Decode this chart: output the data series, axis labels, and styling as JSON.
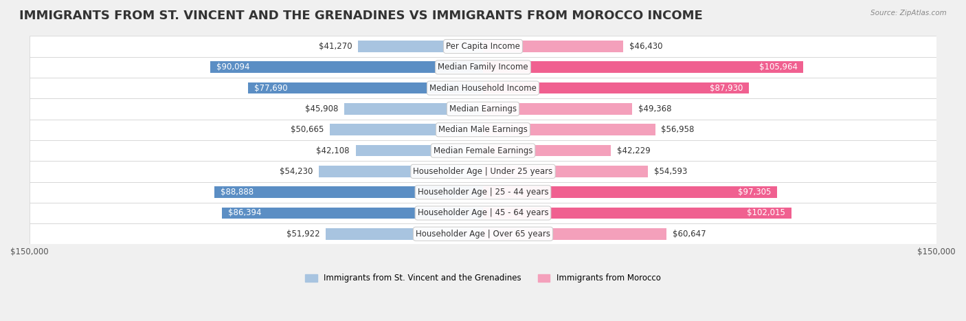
{
  "title": "IMMIGRANTS FROM ST. VINCENT AND THE GRENADINES VS IMMIGRANTS FROM MOROCCO INCOME",
  "source": "Source: ZipAtlas.com",
  "categories": [
    "Per Capita Income",
    "Median Family Income",
    "Median Household Income",
    "Median Earnings",
    "Median Male Earnings",
    "Median Female Earnings",
    "Householder Age | Under 25 years",
    "Householder Age | 25 - 44 years",
    "Householder Age | 45 - 64 years",
    "Householder Age | Over 65 years"
  ],
  "left_values": [
    41270,
    90094,
    77690,
    45908,
    50665,
    42108,
    54230,
    88888,
    86394,
    51922
  ],
  "right_values": [
    46430,
    105964,
    87930,
    49368,
    56958,
    42229,
    54593,
    97305,
    102015,
    60647
  ],
  "left_labels": [
    "$41,270",
    "$90,094",
    "$77,690",
    "$45,908",
    "$50,665",
    "$42,108",
    "$54,230",
    "$88,888",
    "$86,394",
    "$51,922"
  ],
  "right_labels": [
    "$46,430",
    "$105,964",
    "$87,930",
    "$49,368",
    "$56,958",
    "$42,229",
    "$54,593",
    "$97,305",
    "$102,015",
    "$60,647"
  ],
  "max_value": 150000,
  "left_color_light": "#a8c4e0",
  "left_color_dark": "#5b8ec4",
  "right_color_light": "#f4a0bb",
  "right_color_dark": "#f06090",
  "label_threshold": 75000,
  "legend_left": "Immigrants from St. Vincent and the Grenadines",
  "legend_right": "Immigrants from Morocco",
  "bg_color": "#f0f0f0",
  "row_bg": "#ffffff",
  "title_fontsize": 13,
  "label_fontsize": 8.5
}
